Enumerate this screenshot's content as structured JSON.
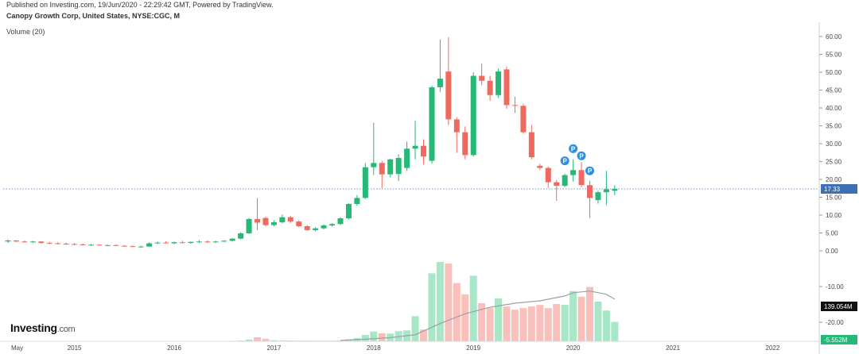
{
  "header": {
    "published": "Published on Investing.com, 19/Jun/2020 - 22:29:42 GMT, Powered by TradingView.",
    "title": "Canopy Growth Corp, United States, NYSE:CGC, M",
    "volume_indicator": "Volume (20)"
  },
  "brand": {
    "name": "Investing",
    "suffix": ".com"
  },
  "colors": {
    "up": "#26b876",
    "down": "#ef6a5e",
    "up_volume": "#a8e6c8",
    "down_volume": "#f9c0bb",
    "volume_ma": "#9aa0a6",
    "price_line": "#3d6fb4",
    "price_label_bg": "#3d6fb4",
    "volume_label_bg": "#111111",
    "badge": "#2f8fe0"
  },
  "chart_data": {
    "type": "candlestick",
    "interval": "monthly",
    "price_axis": {
      "ticks": [
        {
          "value": 60,
          "label": "60.00"
        },
        {
          "value": 55,
          "label": "55.00"
        },
        {
          "value": 50,
          "label": "50.00"
        },
        {
          "value": 45,
          "label": "45.00"
        },
        {
          "value": 40,
          "label": "40.00"
        },
        {
          "value": 35,
          "label": "35.00"
        },
        {
          "value": 30,
          "label": "30.00"
        },
        {
          "value": 25,
          "label": "25.00"
        },
        {
          "value": 20,
          "label": "20.00"
        },
        {
          "value": 15,
          "label": "15.00"
        },
        {
          "value": 10,
          "label": "10.00"
        },
        {
          "value": 5,
          "label": "5.00"
        },
        {
          "value": 0,
          "label": "0.00"
        },
        {
          "value": -10,
          "label": "-10.00"
        },
        {
          "value": -20,
          "label": "-20.00"
        }
      ],
      "last_price": 17.33,
      "last_price_label": "17.33",
      "last_volume_label": "139.054M",
      "bottom_label": "-5.552M"
    },
    "x_axis": {
      "ticks": [
        {
          "label": "May",
          "month": "2014-05"
        },
        {
          "label": "2015",
          "month": "2015-01"
        },
        {
          "label": "2016",
          "month": "2016-01"
        },
        {
          "label": "2017",
          "month": "2017-01"
        },
        {
          "label": "2018",
          "month": "2018-01"
        },
        {
          "label": "2019",
          "month": "2019-01"
        },
        {
          "label": "2020",
          "month": "2020-01"
        },
        {
          "label": "2021",
          "month": "2021-01"
        },
        {
          "label": "2022",
          "month": "2022-01"
        }
      ]
    },
    "candles": [
      {
        "month": "2014-05",
        "o": 2.6,
        "h": 3.2,
        "l": 2.2,
        "c": 2.9
      },
      {
        "month": "2014-06",
        "o": 2.9,
        "h": 3.0,
        "l": 2.4,
        "c": 2.6
      },
      {
        "month": "2014-07",
        "o": 2.6,
        "h": 2.9,
        "l": 2.3,
        "c": 2.5
      },
      {
        "month": "2014-08",
        "o": 2.5,
        "h": 2.8,
        "l": 2.2,
        "c": 2.6
      },
      {
        "month": "2014-09",
        "o": 2.6,
        "h": 2.7,
        "l": 2.0,
        "c": 2.2
      },
      {
        "month": "2014-10",
        "o": 2.2,
        "h": 2.5,
        "l": 1.9,
        "c": 2.1
      },
      {
        "month": "2014-11",
        "o": 2.1,
        "h": 2.4,
        "l": 1.8,
        "c": 2.0
      },
      {
        "month": "2014-12",
        "o": 2.0,
        "h": 2.3,
        "l": 1.7,
        "c": 1.9
      },
      {
        "month": "2015-01",
        "o": 1.9,
        "h": 2.2,
        "l": 1.6,
        "c": 1.8
      },
      {
        "month": "2015-02",
        "o": 1.8,
        "h": 2.0,
        "l": 1.5,
        "c": 1.6
      },
      {
        "month": "2015-03",
        "o": 1.6,
        "h": 1.9,
        "l": 1.4,
        "c": 1.7
      },
      {
        "month": "2015-04",
        "o": 1.7,
        "h": 1.9,
        "l": 1.4,
        "c": 1.5
      },
      {
        "month": "2015-05",
        "o": 1.5,
        "h": 1.7,
        "l": 1.3,
        "c": 1.6
      },
      {
        "month": "2015-06",
        "o": 1.6,
        "h": 1.8,
        "l": 1.3,
        "c": 1.4
      },
      {
        "month": "2015-07",
        "o": 1.4,
        "h": 1.6,
        "l": 1.2,
        "c": 1.3
      },
      {
        "month": "2015-08",
        "o": 1.3,
        "h": 1.5,
        "l": 1.0,
        "c": 1.1
      },
      {
        "month": "2015-09",
        "o": 1.1,
        "h": 1.4,
        "l": 0.9,
        "c": 1.2
      },
      {
        "month": "2015-10",
        "o": 1.2,
        "h": 2.4,
        "l": 1.1,
        "c": 2.1
      },
      {
        "month": "2015-11",
        "o": 2.1,
        "h": 2.6,
        "l": 1.9,
        "c": 2.3
      },
      {
        "month": "2015-12",
        "o": 2.3,
        "h": 2.7,
        "l": 2.0,
        "c": 2.1
      },
      {
        "month": "2016-01",
        "o": 2.1,
        "h": 2.6,
        "l": 1.9,
        "c": 2.4
      },
      {
        "month": "2016-02",
        "o": 2.4,
        "h": 2.8,
        "l": 2.1,
        "c": 2.2
      },
      {
        "month": "2016-03",
        "o": 2.2,
        "h": 2.6,
        "l": 2.0,
        "c": 2.5
      },
      {
        "month": "2016-04",
        "o": 2.5,
        "h": 3.0,
        "l": 2.2,
        "c": 2.6
      },
      {
        "month": "2016-05",
        "o": 2.6,
        "h": 2.9,
        "l": 2.2,
        "c": 2.4
      },
      {
        "month": "2016-06",
        "o": 2.4,
        "h": 2.8,
        "l": 2.2,
        "c": 2.6
      },
      {
        "month": "2016-07",
        "o": 2.6,
        "h": 3.0,
        "l": 2.4,
        "c": 2.8
      },
      {
        "month": "2016-08",
        "o": 2.8,
        "h": 3.6,
        "l": 2.6,
        "c": 3.4
      },
      {
        "month": "2016-09",
        "o": 3.4,
        "h": 5.2,
        "l": 3.2,
        "c": 4.9
      },
      {
        "month": "2016-10",
        "o": 4.9,
        "h": 9.2,
        "l": 4.7,
        "c": 8.9
      },
      {
        "month": "2016-11",
        "o": 8.9,
        "h": 14.8,
        "l": 5.8,
        "c": 7.9
      },
      {
        "month": "2016-12",
        "o": 9.2,
        "h": 9.6,
        "l": 6.8,
        "c": 7.2
      },
      {
        "month": "2017-01",
        "o": 7.2,
        "h": 8.6,
        "l": 6.8,
        "c": 8.0
      },
      {
        "month": "2017-02",
        "o": 8.0,
        "h": 10.2,
        "l": 7.6,
        "c": 9.4
      },
      {
        "month": "2017-03",
        "o": 9.4,
        "h": 9.8,
        "l": 7.8,
        "c": 8.2
      },
      {
        "month": "2017-04",
        "o": 8.2,
        "h": 8.6,
        "l": 6.6,
        "c": 6.9
      },
      {
        "month": "2017-05",
        "o": 6.9,
        "h": 7.2,
        "l": 5.6,
        "c": 5.8
      },
      {
        "month": "2017-06",
        "o": 5.8,
        "h": 6.6,
        "l": 5.4,
        "c": 6.3
      },
      {
        "month": "2017-07",
        "o": 6.3,
        "h": 7.4,
        "l": 6.0,
        "c": 7.1
      },
      {
        "month": "2017-08",
        "o": 7.1,
        "h": 7.8,
        "l": 6.8,
        "c": 7.5
      },
      {
        "month": "2017-09",
        "o": 7.5,
        "h": 9.4,
        "l": 7.2,
        "c": 9.1
      },
      {
        "month": "2017-10",
        "o": 9.1,
        "h": 13.4,
        "l": 8.8,
        "c": 13.1
      },
      {
        "month": "2017-11",
        "o": 13.1,
        "h": 15.6,
        "l": 12.6,
        "c": 14.8
      },
      {
        "month": "2017-12",
        "o": 14.8,
        "h": 24.6,
        "l": 14.5,
        "c": 23.4
      },
      {
        "month": "2018-01",
        "o": 23.4,
        "h": 35.8,
        "l": 21.2,
        "c": 24.6
      },
      {
        "month": "2018-02",
        "o": 24.6,
        "h": 25.2,
        "l": 17.5,
        "c": 21.4
      },
      {
        "month": "2018-03",
        "o": 21.4,
        "h": 25.8,
        "l": 20.6,
        "c": 25.6
      },
      {
        "month": "2018-04",
        "o": 21.5,
        "h": 27.0,
        "l": 19.5,
        "c": 26.0
      },
      {
        "month": "2018-05",
        "o": 23.2,
        "h": 30.6,
        "l": 22.4,
        "c": 28.6
      },
      {
        "month": "2018-06",
        "o": 28.6,
        "h": 36.4,
        "l": 25.6,
        "c": 29.4
      },
      {
        "month": "2018-07",
        "o": 29.4,
        "h": 31.2,
        "l": 24.2,
        "c": 26.4
      },
      {
        "month": "2018-08",
        "o": 25.2,
        "h": 46.2,
        "l": 24.4,
        "c": 45.8
      },
      {
        "month": "2018-09",
        "o": 45.8,
        "h": 59.2,
        "l": 44.5,
        "c": 48.2
      },
      {
        "month": "2018-10",
        "o": 50.2,
        "h": 59.8,
        "l": 35.2,
        "c": 36.8
      },
      {
        "month": "2018-11",
        "o": 36.8,
        "h": 37.4,
        "l": 27.4,
        "c": 33.2
      },
      {
        "month": "2018-12",
        "o": 33.2,
        "h": 34.8,
        "l": 25.6,
        "c": 26.8
      },
      {
        "month": "2019-01",
        "o": 26.8,
        "h": 50.0,
        "l": 26.4,
        "c": 49.0
      },
      {
        "month": "2019-02",
        "o": 49.0,
        "h": 52.4,
        "l": 46.4,
        "c": 47.6
      },
      {
        "month": "2019-03",
        "o": 47.6,
        "h": 49.0,
        "l": 42.0,
        "c": 43.6
      },
      {
        "month": "2019-04",
        "o": 43.6,
        "h": 51.0,
        "l": 42.8,
        "c": 50.2
      },
      {
        "month": "2019-05",
        "o": 50.8,
        "h": 51.6,
        "l": 39.8,
        "c": 40.8
      },
      {
        "month": "2019-06",
        "o": 40.8,
        "h": 43.2,
        "l": 38.6,
        "c": 40.6
      },
      {
        "month": "2019-07",
        "o": 40.6,
        "h": 41.2,
        "l": 32.8,
        "c": 33.2
      },
      {
        "month": "2019-08",
        "o": 33.2,
        "h": 35.2,
        "l": 25.6,
        "c": 26.2
      },
      {
        "month": "2019-09",
        "o": 23.8,
        "h": 24.4,
        "l": 22.6,
        "c": 23.2
      },
      {
        "month": "2019-10",
        "o": 23.2,
        "h": 23.6,
        "l": 17.6,
        "c": 19.2
      },
      {
        "month": "2019-11",
        "o": 19.2,
        "h": 19.8,
        "l": 14.0,
        "c": 18.2
      },
      {
        "month": "2019-12",
        "o": 18.2,
        "h": 21.6,
        "l": 17.8,
        "c": 21.2
      },
      {
        "month": "2020-01",
        "o": 21.2,
        "h": 25.6,
        "l": 19.4,
        "c": 22.6
      },
      {
        "month": "2020-02",
        "o": 22.6,
        "h": 24.8,
        "l": 17.8,
        "c": 18.4
      },
      {
        "month": "2020-03",
        "o": 18.4,
        "h": 19.6,
        "l": 9.2,
        "c": 14.8
      },
      {
        "month": "2020-04",
        "o": 14.2,
        "h": 16.8,
        "l": 13.2,
        "c": 16.4
      },
      {
        "month": "2020-05",
        "o": 16.4,
        "h": 22.4,
        "l": 12.8,
        "c": 17.2
      },
      {
        "month": "2020-06",
        "o": 16.8,
        "h": 18.4,
        "l": 15.6,
        "c": 17.3
      }
    ],
    "volume": [
      {
        "month": "2014-05",
        "v": 0.3
      },
      {
        "month": "2014-06",
        "v": 0.2
      },
      {
        "month": "2014-07",
        "v": 0.2
      },
      {
        "month": "2014-08",
        "v": 0.2
      },
      {
        "month": "2014-09",
        "v": 0.2
      },
      {
        "month": "2014-10",
        "v": 0.2
      },
      {
        "month": "2014-11",
        "v": 0.2
      },
      {
        "month": "2014-12",
        "v": 0.2
      },
      {
        "month": "2015-01",
        "v": 0.2
      },
      {
        "month": "2015-02",
        "v": 0.2
      },
      {
        "month": "2015-03",
        "v": 0.2
      },
      {
        "month": "2015-04",
        "v": 0.2
      },
      {
        "month": "2015-05",
        "v": 0.2
      },
      {
        "month": "2015-06",
        "v": 0.2
      },
      {
        "month": "2015-07",
        "v": 0.2
      },
      {
        "month": "2015-08",
        "v": 0.2
      },
      {
        "month": "2015-09",
        "v": 0.2
      },
      {
        "month": "2015-10",
        "v": 0.3
      },
      {
        "month": "2015-11",
        "v": 0.3
      },
      {
        "month": "2015-12",
        "v": 0.3
      },
      {
        "month": "2016-01",
        "v": 0.3
      },
      {
        "month": "2016-02",
        "v": 0.3
      },
      {
        "month": "2016-03",
        "v": 0.3
      },
      {
        "month": "2016-04",
        "v": 0.3
      },
      {
        "month": "2016-05",
        "v": 0.3
      },
      {
        "month": "2016-06",
        "v": 0.3
      },
      {
        "month": "2016-07",
        "v": 0.4
      },
      {
        "month": "2016-08",
        "v": 0.6
      },
      {
        "month": "2016-09",
        "v": 1.0
      },
      {
        "month": "2016-10",
        "v": 2.2
      },
      {
        "month": "2016-11",
        "v": 5.0
      },
      {
        "month": "2016-12",
        "v": 3.0
      },
      {
        "month": "2017-01",
        "v": 1.4
      },
      {
        "month": "2017-02",
        "v": 1.2
      },
      {
        "month": "2017-03",
        "v": 1.0
      },
      {
        "month": "2017-04",
        "v": 0.9
      },
      {
        "month": "2017-05",
        "v": 0.9
      },
      {
        "month": "2017-06",
        "v": 0.8
      },
      {
        "month": "2017-07",
        "v": 0.8
      },
      {
        "month": "2017-08",
        "v": 0.9
      },
      {
        "month": "2017-09",
        "v": 1.0
      },
      {
        "month": "2017-10",
        "v": 2.5
      },
      {
        "month": "2017-11",
        "v": 4.0
      },
      {
        "month": "2017-12",
        "v": 8.0
      },
      {
        "month": "2018-01",
        "v": 12.0
      },
      {
        "month": "2018-02",
        "v": 10.0
      },
      {
        "month": "2018-03",
        "v": 9.5
      },
      {
        "month": "2018-04",
        "v": 12.5
      },
      {
        "month": "2018-05",
        "v": 13.5
      },
      {
        "month": "2018-06",
        "v": 31.0
      },
      {
        "month": "2018-07",
        "v": 14.5
      },
      {
        "month": "2018-08",
        "v": 84.0
      },
      {
        "month": "2018-09",
        "v": 98.0
      },
      {
        "month": "2018-10",
        "v": 96.0
      },
      {
        "month": "2018-11",
        "v": 72.0
      },
      {
        "month": "2018-12",
        "v": 58.0
      },
      {
        "month": "2019-01",
        "v": 81.0
      },
      {
        "month": "2019-02",
        "v": 47.0
      },
      {
        "month": "2019-03",
        "v": 41.0
      },
      {
        "month": "2019-04",
        "v": 53.0
      },
      {
        "month": "2019-05",
        "v": 43.0
      },
      {
        "month": "2019-06",
        "v": 39.0
      },
      {
        "month": "2019-07",
        "v": 41.0
      },
      {
        "month": "2019-08",
        "v": 43.0
      },
      {
        "month": "2019-09",
        "v": 45.0
      },
      {
        "month": "2019-10",
        "v": 41.0
      },
      {
        "month": "2019-11",
        "v": 46.0
      },
      {
        "month": "2019-12",
        "v": 45.0
      },
      {
        "month": "2020-01",
        "v": 62.0
      },
      {
        "month": "2020-02",
        "v": 55.0
      },
      {
        "month": "2020-03",
        "v": 67.0
      },
      {
        "month": "2020-04",
        "v": 49.0
      },
      {
        "month": "2020-05",
        "v": 38.0
      },
      {
        "month": "2020-06",
        "v": 24.0
      }
    ],
    "volume_ma20": [
      {
        "month": "2017-09",
        "v": 1.2
      },
      {
        "month": "2017-12",
        "v": 2.5
      },
      {
        "month": "2018-03",
        "v": 4.5
      },
      {
        "month": "2018-06",
        "v": 8.0
      },
      {
        "month": "2018-09",
        "v": 22.0
      },
      {
        "month": "2018-12",
        "v": 34.0
      },
      {
        "month": "2019-03",
        "v": 42.0
      },
      {
        "month": "2019-06",
        "v": 47.0
      },
      {
        "month": "2019-09",
        "v": 50.0
      },
      {
        "month": "2019-12",
        "v": 56.0
      },
      {
        "month": "2020-01",
        "v": 60.0
      },
      {
        "month": "2020-03",
        "v": 62.0
      },
      {
        "month": "2020-05",
        "v": 58.0
      },
      {
        "month": "2020-06",
        "v": 52.0
      }
    ],
    "markers": [
      {
        "month": "2019-12",
        "price": 25.2,
        "label": "P"
      },
      {
        "month": "2020-01",
        "price": 28.6,
        "label": "P"
      },
      {
        "month": "2020-02",
        "price": 26.6,
        "label": "P"
      },
      {
        "month": "2020-03",
        "price": 22.4,
        "label": "P"
      }
    ]
  }
}
